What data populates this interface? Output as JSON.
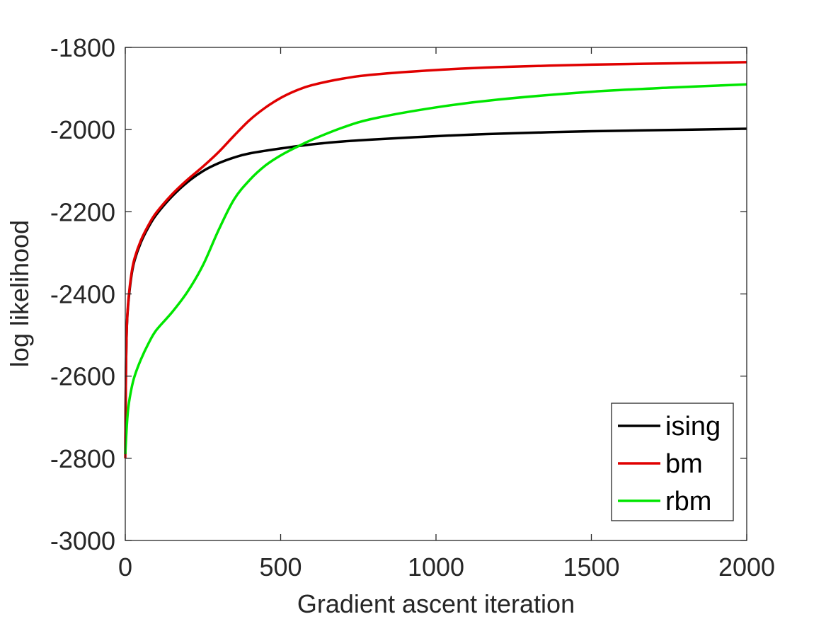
{
  "chart_data": {
    "type": "line",
    "title": "",
    "xlabel": "Gradient ascent iteration",
    "ylabel": "log likelihood",
    "xlim": [
      0,
      2000
    ],
    "ylim": [
      -3000,
      -1800
    ],
    "xticks": [
      0,
      500,
      1000,
      1500,
      2000
    ],
    "xtick_labels": [
      "0",
      "500",
      "1000",
      "1500",
      "2000"
    ],
    "yticks": [
      -3000,
      -2800,
      -2600,
      -2400,
      -2200,
      -2000,
      -1800
    ],
    "ytick_labels": [
      "-3000",
      "-2800",
      "-2600",
      "-2400",
      "-2200",
      "-2000",
      "-1800"
    ],
    "grid": false,
    "legend_position": "bottom-right",
    "series": [
      {
        "name": "ising",
        "color": "#000000",
        "x": [
          0,
          2,
          5,
          10,
          20,
          30,
          50,
          75,
          100,
          150,
          200,
          250,
          300,
          350,
          400,
          500,
          600,
          700,
          800,
          1000,
          1200,
          1500,
          1750,
          2000
        ],
        "y": [
          -2790,
          -2600,
          -2480,
          -2420,
          -2355,
          -2318,
          -2275,
          -2237,
          -2207,
          -2163,
          -2128,
          -2101,
          -2082,
          -2068,
          -2058,
          -2046,
          -2036,
          -2029,
          -2024,
          -2016,
          -2010,
          -2004,
          -2001,
          -1998
        ]
      },
      {
        "name": "bm",
        "color": "#e00000",
        "x": [
          0,
          2,
          5,
          10,
          20,
          30,
          50,
          75,
          100,
          150,
          200,
          250,
          300,
          350,
          400,
          450,
          500,
          550,
          600,
          700,
          800,
          1000,
          1200,
          1500,
          1750,
          2000
        ],
        "y": [
          -2800,
          -2600,
          -2480,
          -2415,
          -2350,
          -2313,
          -2270,
          -2232,
          -2202,
          -2158,
          -2122,
          -2090,
          -2055,
          -2015,
          -1977,
          -1947,
          -1923,
          -1905,
          -1892,
          -1876,
          -1866,
          -1855,
          -1848,
          -1842,
          -1839,
          -1836
        ]
      },
      {
        "name": "rbm",
        "color": "#00e600",
        "x": [
          0,
          5,
          10,
          20,
          30,
          50,
          75,
          100,
          150,
          200,
          250,
          300,
          350,
          400,
          450,
          500,
          550,
          600,
          700,
          800,
          1000,
          1200,
          1500,
          1750,
          2000
        ],
        "y": [
          -2790,
          -2720,
          -2675,
          -2630,
          -2600,
          -2560,
          -2520,
          -2488,
          -2445,
          -2395,
          -2330,
          -2245,
          -2170,
          -2123,
          -2088,
          -2063,
          -2043,
          -2025,
          -1995,
          -1973,
          -1946,
          -1927,
          -1908,
          -1898,
          -1890
        ]
      }
    ]
  }
}
